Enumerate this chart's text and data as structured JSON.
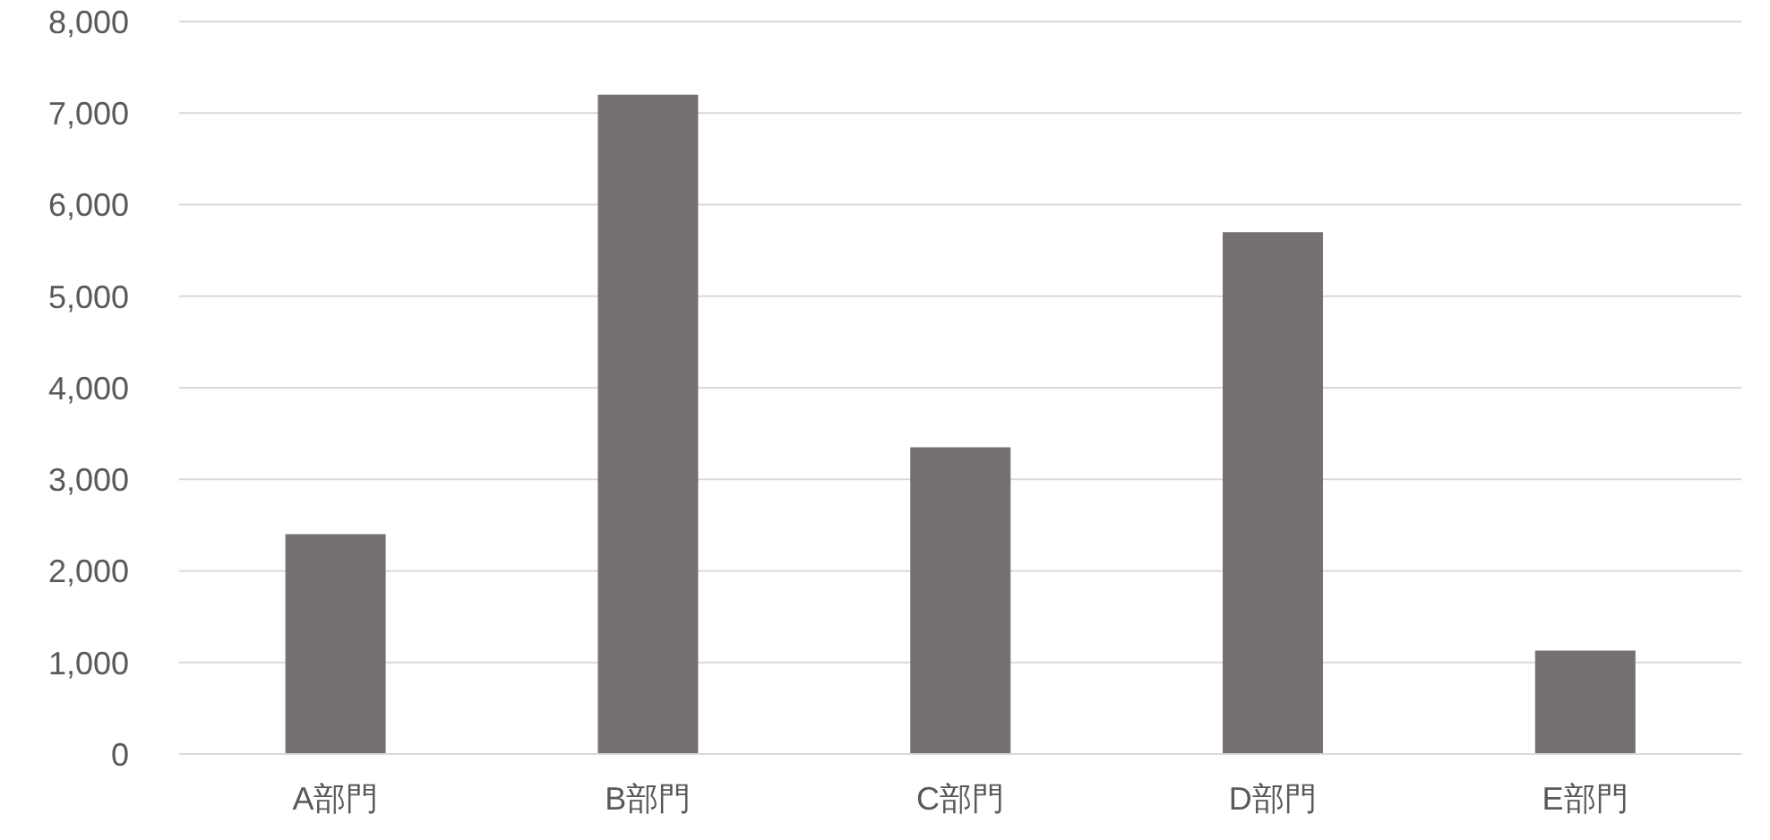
{
  "chart_data": {
    "type": "bar",
    "categories": [
      "A部門",
      "B部門",
      "C部門",
      "D部門",
      "E部門"
    ],
    "values": [
      2400,
      7200,
      3350,
      5700,
      1130
    ],
    "color": "#767171",
    "ylim": [
      0,
      8000
    ],
    "yticks": [
      {
        "value": 0,
        "label": "0"
      },
      {
        "value": 1000,
        "label": "1,000"
      },
      {
        "value": 2000,
        "label": "2,000"
      },
      {
        "value": 3000,
        "label": "3,000"
      },
      {
        "value": 4000,
        "label": "4,000"
      },
      {
        "value": 5000,
        "label": "5,000"
      },
      {
        "value": 6000,
        "label": "6,000"
      },
      {
        "value": 7000,
        "label": "7,000"
      },
      {
        "value": 8000,
        "label": "8,000"
      }
    ],
    "grid": "y",
    "legend": false
  }
}
